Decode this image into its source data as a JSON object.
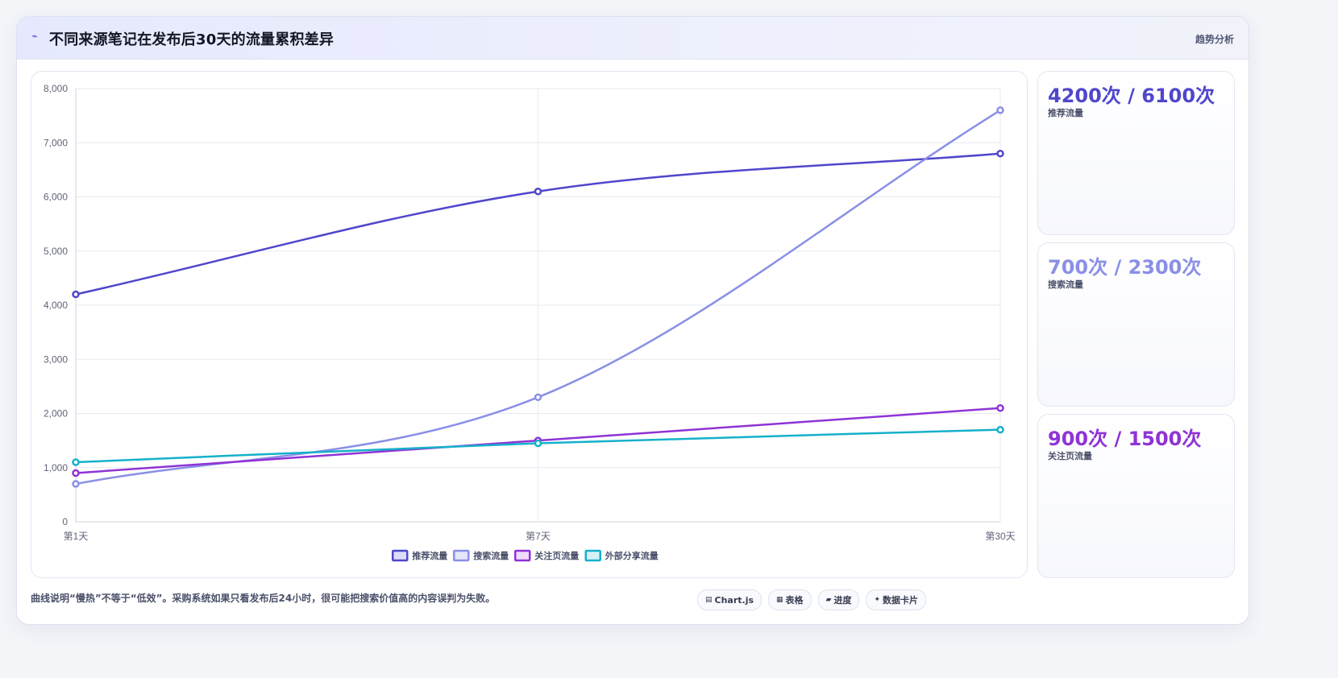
{
  "header": {
    "icon": "trend-icon",
    "title": "不同来源笔记在发布后30天的流量累积差异",
    "tag": "趋势分析"
  },
  "chart_data": {
    "type": "line",
    "title": "",
    "xlabel": "",
    "ylabel": "",
    "categories": [
      "第1天",
      "第7天",
      "第30天"
    ],
    "y_ticks": [
      "0",
      "1,000",
      "2,000",
      "3,000",
      "4,000",
      "5,000",
      "6,000",
      "7,000",
      "8,000"
    ],
    "ylim": [
      0,
      8000
    ],
    "grid": true,
    "legend_position": "bottom",
    "series": [
      {
        "name": "推荐流量",
        "values": [
          4200,
          6100,
          6800
        ],
        "color": "#4f46cc",
        "fill": "#dcdcf7"
      },
      {
        "name": "搜索流量",
        "values": [
          700,
          2300,
          7600
        ],
        "color": "#8a8fe6",
        "fill": "#e4e6fa"
      },
      {
        "name": "关注页流量",
        "values": [
          900,
          1500,
          2100
        ],
        "color": "#8f33d6",
        "fill": "#eedcfb"
      },
      {
        "name": "外部分享流量",
        "values": [
          1100,
          1450,
          1700
        ],
        "color": "#16b0cb",
        "fill": "#d6f2f7"
      }
    ]
  },
  "stats": [
    {
      "value": "4200次 / 6100次",
      "label": "推荐流量",
      "color": "#4f46cc"
    },
    {
      "value": "700次 / 2300次",
      "label": "搜索流量",
      "color": "#8a8fe6"
    },
    {
      "value": "900次 / 1500次",
      "label": "关注页流量",
      "color": "#8f33d6"
    }
  ],
  "footer": {
    "note": "曲线说明“慢热”不等于“低效”。采购系统如果只看发布后24小时，很可能把搜索价值高的内容误判为失败。",
    "buttons": [
      {
        "icon": "chart-icon",
        "glyph": "▤",
        "label": "Chart.js"
      },
      {
        "icon": "table-icon",
        "glyph": "▦",
        "label": "表格"
      },
      {
        "icon": "progress-icon",
        "glyph": "▰",
        "label": "进度"
      },
      {
        "icon": "card-icon",
        "glyph": "✦",
        "label": "数据卡片"
      }
    ]
  }
}
